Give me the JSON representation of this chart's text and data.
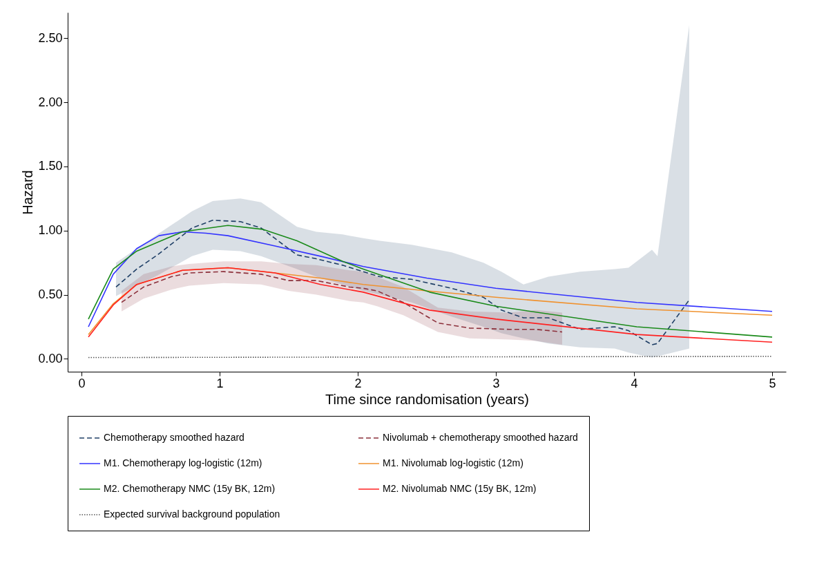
{
  "chart_data": {
    "type": "line",
    "xlabel": "Time since randomisation (years)",
    "ylabel": "Hazard",
    "xlim": [
      -0.1,
      5.1
    ],
    "xticks": [
      0,
      1,
      2,
      3,
      4,
      5
    ],
    "ylim": [
      -0.1,
      2.7
    ],
    "yticks": [
      {
        "value": 0,
        "label": "0.00"
      },
      {
        "value": 0.5,
        "label": "0.50"
      },
      {
        "value": 1,
        "label": "1.00"
      },
      {
        "value": 1.5,
        "label": "1.50"
      },
      {
        "value": 2,
        "label": "2.00"
      },
      {
        "value": 2.5,
        "label": "2.50"
      }
    ],
    "grid": false,
    "legend": "bottom",
    "series": [
      {
        "name": "Chemotherapy smoothed hazard",
        "color": "#1f3f66",
        "line_style": "dashed",
        "x": [
          0.25,
          0.4,
          0.55,
          0.8,
          0.95,
          1.15,
          1.3,
          1.56,
          1.7,
          1.89,
          2.04,
          2.16,
          2.39,
          2.68,
          2.91,
          3.04,
          3.2,
          3.38,
          3.61,
          3.86,
          3.96,
          4.13,
          4.17,
          4.4
        ],
        "values": [
          0.56,
          0.7,
          0.81,
          1.02,
          1.08,
          1.07,
          1.02,
          0.81,
          0.78,
          0.73,
          0.68,
          0.64,
          0.62,
          0.55,
          0.48,
          0.38,
          0.32,
          0.32,
          0.23,
          0.25,
          0.22,
          0.11,
          0.12,
          0.46
        ],
        "lower": [
          0.49,
          0.57,
          0.65,
          0.8,
          0.85,
          0.84,
          0.8,
          0.7,
          0.64,
          0.58,
          0.53,
          0.5,
          0.44,
          0.33,
          0.25,
          0.2,
          0.16,
          0.12,
          0.09,
          0.08,
          0.05,
          0.01,
          0.02,
          0.08
        ],
        "upper": [
          0.75,
          0.86,
          0.97,
          1.15,
          1.23,
          1.25,
          1.22,
          1.03,
          0.99,
          0.97,
          0.94,
          0.92,
          0.89,
          0.83,
          0.75,
          0.68,
          0.58,
          0.64,
          0.68,
          0.7,
          0.71,
          0.85,
          0.8,
          2.6
        ]
      },
      {
        "name": "Nivolumab + chemotherapy smoothed hazard",
        "color": "#8b2f3a",
        "line_style": "dashed",
        "x": [
          0.29,
          0.45,
          0.65,
          0.78,
          1.03,
          1.3,
          1.5,
          1.7,
          1.94,
          2.04,
          2.14,
          2.33,
          2.58,
          2.81,
          3.1,
          3.29,
          3.48
        ],
        "values": [
          0.44,
          0.56,
          0.64,
          0.67,
          0.68,
          0.66,
          0.61,
          0.61,
          0.56,
          0.55,
          0.53,
          0.44,
          0.28,
          0.24,
          0.23,
          0.23,
          0.21
        ],
        "lower": [
          0.37,
          0.47,
          0.54,
          0.57,
          0.59,
          0.58,
          0.53,
          0.5,
          0.45,
          0.44,
          0.41,
          0.34,
          0.21,
          0.16,
          0.15,
          0.14,
          0.11
        ],
        "upper": [
          0.53,
          0.66,
          0.72,
          0.74,
          0.76,
          0.76,
          0.74,
          0.73,
          0.69,
          0.68,
          0.64,
          0.56,
          0.4,
          0.37,
          0.36,
          0.38,
          0.36
        ]
      },
      {
        "name": "M1. Chemotherapy log-logistic (12m)",
        "color": "#3333ff",
        "line_style": "solid",
        "x": [
          0.05,
          0.23,
          0.4,
          0.56,
          0.73,
          0.9,
          1.06,
          1.4,
          1.73,
          2.04,
          2.5,
          3.0,
          4.02,
          5.0
        ],
        "values": [
          0.25,
          0.66,
          0.86,
          0.96,
          0.99,
          0.98,
          0.96,
          0.88,
          0.8,
          0.72,
          0.63,
          0.55,
          0.44,
          0.37
        ]
      },
      {
        "name": "M1. Nivolumab log-logistic (12m)",
        "color": "#f0922f",
        "line_style": "solid",
        "x": [
          0.05,
          0.23,
          0.4,
          0.73,
          1.06,
          1.4,
          1.73,
          2.04,
          2.5,
          3.0,
          4.02,
          5.0
        ],
        "values": [
          0.19,
          0.43,
          0.58,
          0.69,
          0.71,
          0.67,
          0.63,
          0.58,
          0.53,
          0.48,
          0.39,
          0.34
        ]
      },
      {
        "name": "M2. Chemotherapy NMC (15y BK, 12m)",
        "color": "#1a8a1a",
        "line_style": "solid",
        "x": [
          0.05,
          0.23,
          0.4,
          0.73,
          1.06,
          1.31,
          1.56,
          1.89,
          2.04,
          2.52,
          3.0,
          4.02,
          5.0
        ],
        "values": [
          0.31,
          0.7,
          0.84,
          0.99,
          1.04,
          1.01,
          0.92,
          0.76,
          0.7,
          0.52,
          0.41,
          0.25,
          0.17
        ]
      },
      {
        "name": "M2. Nivolumab NMC (15y BK, 12m)",
        "color": "#ff2020",
        "line_style": "solid",
        "x": [
          0.05,
          0.23,
          0.4,
          0.73,
          1.06,
          1.4,
          1.73,
          2.04,
          2.52,
          3.0,
          4.02,
          5.0
        ],
        "values": [
          0.17,
          0.42,
          0.58,
          0.69,
          0.71,
          0.67,
          0.58,
          0.52,
          0.38,
          0.31,
          0.19,
          0.13
        ]
      },
      {
        "name": "Expected survival background population",
        "color": "#555555",
        "line_style": "dotted",
        "x": [
          0.05,
          2.5,
          5.0
        ],
        "values": [
          0.01,
          0.015,
          0.02
        ]
      }
    ]
  }
}
